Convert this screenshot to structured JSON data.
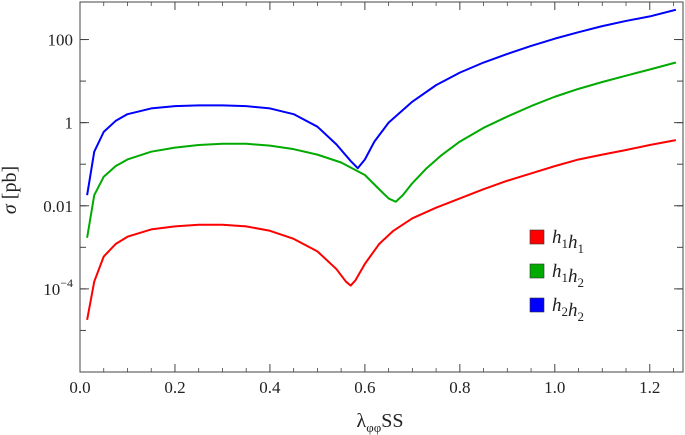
{
  "chart_data": {
    "type": "line",
    "xlabel": "λ_φφSS",
    "xlabel_main": "λ",
    "xlabel_sub": "φφ",
    "xlabel_tail": "SS",
    "ylabel": "σ [pb]",
    "ylabel_symbol": "σ",
    "ylabel_unit": "[pb]",
    "y_scale": "log",
    "xlim": [
      0,
      1.27
    ],
    "ylim": [
      1e-06,
      800
    ],
    "x_ticks": [
      0.0,
      0.2,
      0.4,
      0.6,
      0.8,
      1.0,
      1.2
    ],
    "x_tick_labels": [
      "0.0",
      "0.2",
      "0.4",
      "0.6",
      "0.8",
      "1.0",
      "1.2"
    ],
    "y_ticks": [
      100,
      1,
      0.01,
      0.0001
    ],
    "y_tick_labels": [
      "100",
      "1",
      "0.01",
      "10^-4"
    ],
    "legend_position": "right-center",
    "grid": false,
    "series": [
      {
        "name": "h1h1",
        "legend_parts": [
          [
            "h",
            "1"
          ],
          [
            "h",
            "1"
          ]
        ],
        "color": "#ff0000",
        "x": [
          0.015,
          0.03,
          0.05,
          0.075,
          0.1,
          0.15,
          0.2,
          0.25,
          0.3,
          0.35,
          0.4,
          0.45,
          0.5,
          0.54,
          0.56,
          0.57,
          0.58,
          0.6,
          0.63,
          0.66,
          0.7,
          0.75,
          0.8,
          0.85,
          0.9,
          0.95,
          1.0,
          1.05,
          1.1,
          1.15,
          1.2,
          1.255
        ],
        "y": [
          1.8e-05,
          0.00015,
          0.0006,
          0.0012,
          0.0018,
          0.0027,
          0.0032,
          0.0035,
          0.0035,
          0.0032,
          0.0025,
          0.0016,
          0.0008,
          0.0003,
          0.00015,
          0.00012,
          0.00016,
          0.0004,
          0.0012,
          0.0025,
          0.005,
          0.009,
          0.015,
          0.025,
          0.04,
          0.06,
          0.09,
          0.13,
          0.17,
          0.22,
          0.29,
          0.38
        ]
      },
      {
        "name": "h1h2",
        "legend_parts": [
          [
            "h",
            "1"
          ],
          [
            "h",
            "2"
          ]
        ],
        "color": "#00aa00",
        "x": [
          0.015,
          0.03,
          0.05,
          0.075,
          0.1,
          0.15,
          0.2,
          0.25,
          0.3,
          0.35,
          0.4,
          0.45,
          0.5,
          0.55,
          0.6,
          0.63,
          0.65,
          0.665,
          0.68,
          0.7,
          0.73,
          0.76,
          0.8,
          0.85,
          0.9,
          0.95,
          1.0,
          1.05,
          1.1,
          1.15,
          1.2,
          1.255
        ],
        "y": [
          0.0017,
          0.018,
          0.05,
          0.09,
          0.13,
          0.2,
          0.25,
          0.29,
          0.31,
          0.31,
          0.28,
          0.23,
          0.17,
          0.11,
          0.055,
          0.025,
          0.015,
          0.0125,
          0.018,
          0.035,
          0.08,
          0.16,
          0.35,
          0.75,
          1.4,
          2.5,
          4.2,
          6.5,
          9.5,
          13.5,
          19,
          28
        ]
      },
      {
        "name": "h2h2",
        "legend_parts": [
          [
            "h",
            "2"
          ],
          [
            "h",
            "2"
          ]
        ],
        "color": "#0000ff",
        "x": [
          0.015,
          0.03,
          0.05,
          0.075,
          0.1,
          0.15,
          0.2,
          0.25,
          0.3,
          0.35,
          0.4,
          0.45,
          0.5,
          0.54,
          0.57,
          0.585,
          0.6,
          0.62,
          0.65,
          0.7,
          0.75,
          0.8,
          0.85,
          0.9,
          0.95,
          1.0,
          1.05,
          1.1,
          1.15,
          1.2,
          1.255
        ],
        "y": [
          0.018,
          0.2,
          0.6,
          1.1,
          1.6,
          2.2,
          2.5,
          2.6,
          2.6,
          2.5,
          2.2,
          1.6,
          0.8,
          0.3,
          0.12,
          0.08,
          0.13,
          0.35,
          1.0,
          3.2,
          8.0,
          16,
          28,
          45,
          70,
          105,
          150,
          210,
          280,
          360,
          520
        ]
      }
    ]
  }
}
